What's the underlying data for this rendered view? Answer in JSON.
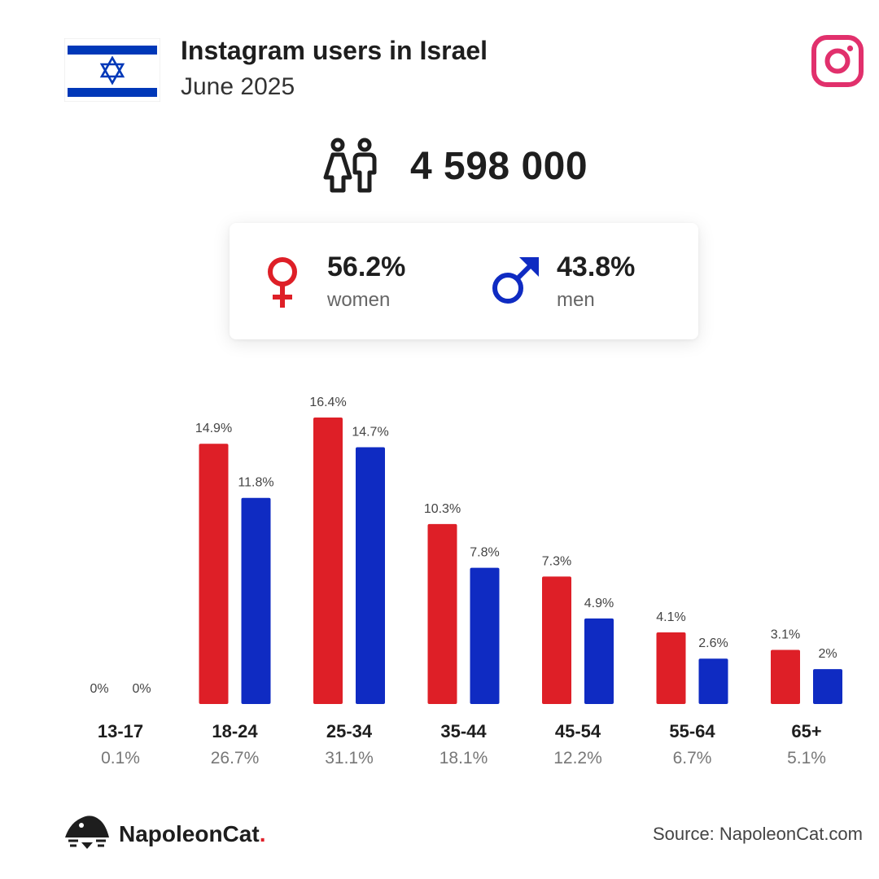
{
  "header": {
    "title": "Instagram users in Israel",
    "subtitle": "June 2025"
  },
  "total": {
    "value": "4 598 000"
  },
  "gender": {
    "women": {
      "pct": "56.2%",
      "label": "women"
    },
    "men": {
      "pct": "43.8%",
      "label": "men"
    }
  },
  "colors": {
    "women": "#de1f27",
    "men": "#0f2bc2",
    "instagram": "#e1306c",
    "flag_blue": "#0038b8"
  },
  "icons": {
    "flag": "israel-flag-icon",
    "brand": "instagram-icon",
    "total": "people-icon",
    "women": "female-symbol-icon",
    "men": "male-symbol-icon",
    "logo": "napoleoncat-logo-icon"
  },
  "chart_data": {
    "type": "bar",
    "categories": [
      "13-17",
      "18-24",
      "25-34",
      "35-44",
      "45-54",
      "55-64",
      "65+"
    ],
    "category_totals": [
      "0.1%",
      "26.7%",
      "31.1%",
      "18.1%",
      "12.2%",
      "6.7%",
      "5.1%"
    ],
    "series": [
      {
        "name": "women",
        "values": [
          0,
          14.9,
          16.4,
          10.3,
          7.3,
          4.1,
          3.1
        ],
        "labels": [
          "0%",
          "14.9%",
          "16.4%",
          "10.3%",
          "7.3%",
          "4.1%",
          "3.1%"
        ]
      },
      {
        "name": "men",
        "values": [
          0,
          11.8,
          14.7,
          7.8,
          4.9,
          2.6,
          2
        ],
        "labels": [
          "0%",
          "11.8%",
          "14.7%",
          "7.8%",
          "4.9%",
          "2.6%",
          "2%"
        ]
      }
    ],
    "ylim": [
      0,
      16.4
    ],
    "grid": false
  },
  "footer": {
    "brand_name": "NapoleonCat",
    "brand_dot": ".",
    "source": "Source: NapoleonCat.com"
  }
}
